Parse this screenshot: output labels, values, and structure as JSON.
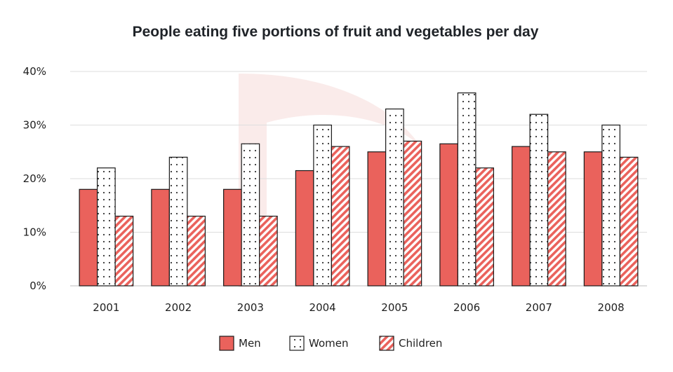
{
  "chart_data": {
    "type": "bar",
    "title": "People eating five portions of fruit and vegetables per day",
    "categories": [
      "2001",
      "2002",
      "2003",
      "2004",
      "2005",
      "2006",
      "2007",
      "2008"
    ],
    "series": [
      {
        "name": "Men",
        "values": [
          18,
          18,
          18,
          21.5,
          25,
          26.5,
          26,
          25
        ],
        "color": "#ea625c",
        "pattern": "solid"
      },
      {
        "name": "Women",
        "values": [
          22,
          24,
          26.5,
          30,
          33,
          36,
          32,
          30
        ],
        "color": "#ffffff",
        "pattern": "dots"
      },
      {
        "name": "Children",
        "values": [
          13,
          13,
          13,
          26,
          27,
          22,
          25,
          24
        ],
        "color": "#ea625c",
        "pattern": "stripes"
      }
    ],
    "ylim": [
      0,
      40
    ],
    "yticks": [
      0,
      10,
      20,
      30,
      40
    ],
    "ytick_labels": [
      "0%",
      "10%",
      "20%",
      "30%",
      "40%"
    ],
    "xlabel": "",
    "ylabel": "",
    "grid": true,
    "legend_position": "bottom"
  }
}
